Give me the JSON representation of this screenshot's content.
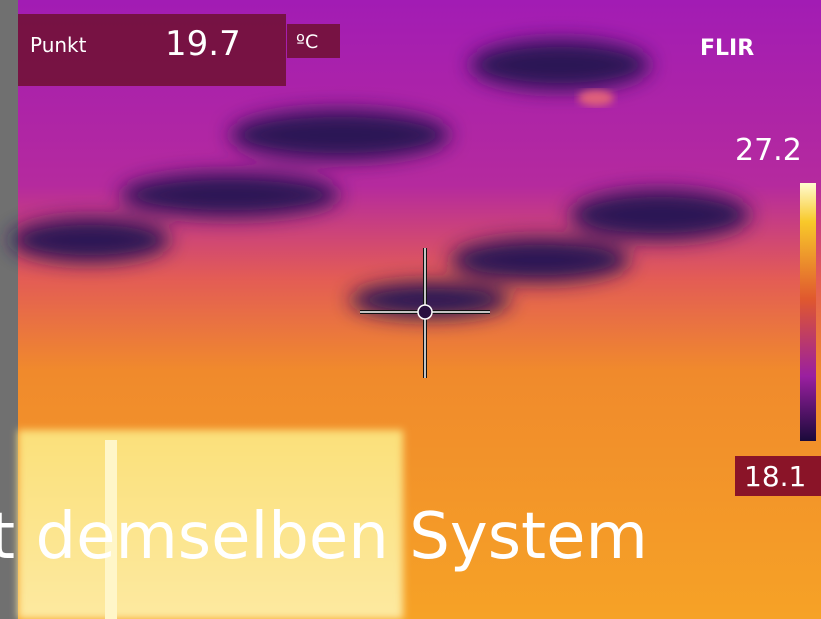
{
  "overlay": {
    "label": "Punkt",
    "value": "19.7",
    "unit": "ºC"
  },
  "brand": "FLIR",
  "scale": {
    "max": "27.2",
    "min": "18.1"
  },
  "caption": "t demselben System"
}
